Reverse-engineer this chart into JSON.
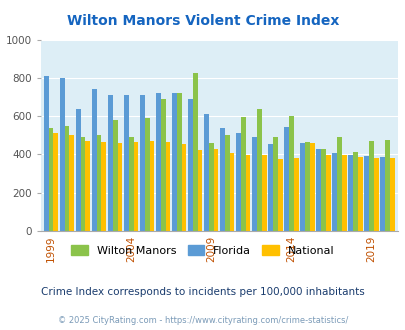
{
  "title": "Wilton Manors Violent Crime Index",
  "subtitle": "Crime Index corresponds to incidents per 100,000 inhabitants",
  "footer": "© 2025 CityRating.com - https://www.cityrating.com/crime-statistics/",
  "years": [
    1999,
    2000,
    2001,
    2002,
    2003,
    2004,
    2005,
    2006,
    2007,
    2008,
    2009,
    2010,
    2011,
    2012,
    2013,
    2014,
    2015,
    2016,
    2017,
    2018,
    2019,
    2020
  ],
  "wilton_manors": [
    540,
    550,
    490,
    500,
    580,
    490,
    590,
    690,
    720,
    825,
    460,
    500,
    595,
    640,
    490,
    600,
    465,
    430,
    490,
    415,
    470,
    475
  ],
  "florida": [
    810,
    800,
    640,
    740,
    710,
    710,
    710,
    720,
    720,
    690,
    610,
    540,
    510,
    490,
    455,
    545,
    460,
    430,
    405,
    395,
    390,
    385
  ],
  "national": [
    510,
    500,
    470,
    465,
    460,
    465,
    470,
    465,
    455,
    425,
    430,
    405,
    395,
    395,
    375,
    380,
    460,
    395,
    395,
    385,
    380,
    380
  ],
  "ylim": [
    0,
    1000
  ],
  "yticks": [
    0,
    200,
    400,
    600,
    800,
    1000
  ],
  "color_wilton": "#8bc34a",
  "color_florida": "#5b9bd5",
  "color_national": "#ffc000",
  "bg_color": "#ddeef6",
  "title_color": "#1565c0",
  "subtitle_color": "#1a3c6e",
  "footer_color": "#7b9bb8",
  "bar_width": 0.3,
  "tick_years": [
    1999,
    2004,
    2009,
    2014,
    2019
  ],
  "xlabel_color": "#c05000"
}
